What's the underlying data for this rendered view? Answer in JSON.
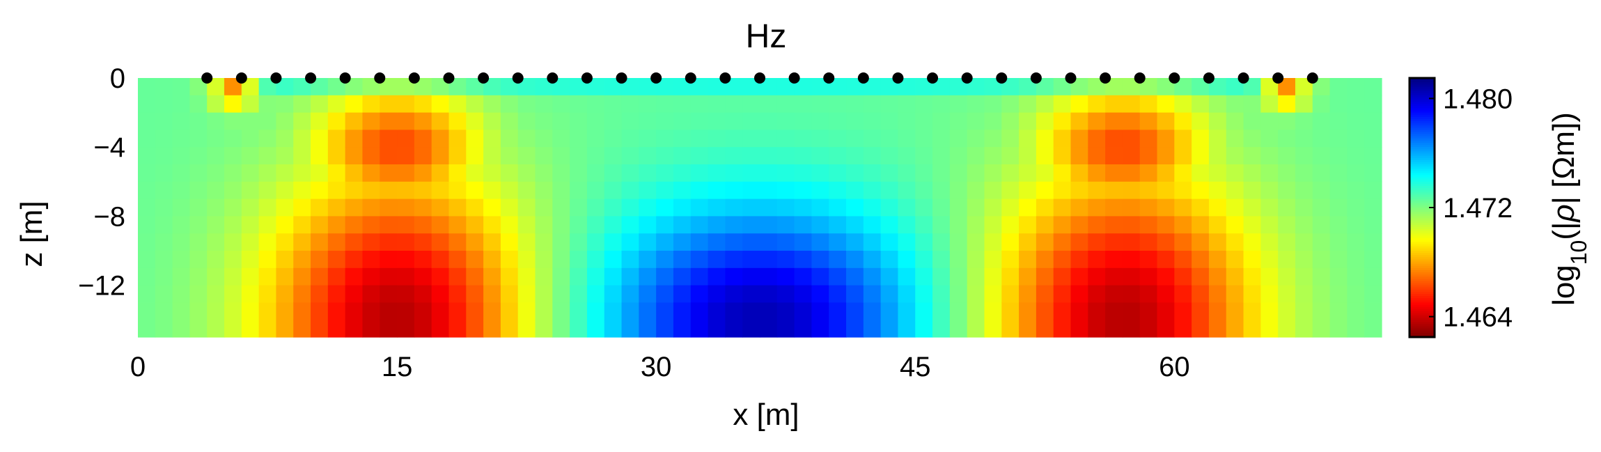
{
  "chart_data": {
    "type": "heatmap",
    "title": "Hz",
    "xlabel": "x [m]",
    "ylabel": "z [m]",
    "xlim": [
      0,
      72
    ],
    "ylim": [
      -15,
      0
    ],
    "x_ticks": [
      0,
      15,
      30,
      45,
      60
    ],
    "x_tick_labels": [
      "0",
      "15",
      "30",
      "45",
      "60"
    ],
    "y_ticks": [
      0,
      -4,
      -8,
      -12
    ],
    "y_tick_labels": [
      "0",
      "−4",
      "−8",
      "−12"
    ],
    "colorbar": {
      "label": "log10(|ρ| [Ωm])",
      "range": [
        1.4625,
        1.4815
      ],
      "ticks": [
        1.464,
        1.472,
        1.48
      ],
      "tick_labels": [
        "1.464",
        "1.472",
        "1.480"
      ],
      "colormap": "jet",
      "reversed": true
    },
    "electrodes_x": [
      4,
      6,
      8,
      10,
      12,
      14,
      16,
      18,
      20,
      22,
      24,
      26,
      28,
      30,
      32,
      34,
      36,
      38,
      40,
      42,
      44,
      46,
      48,
      50,
      52,
      54,
      56,
      58,
      60,
      62,
      64,
      66,
      68
    ],
    "electrode_color": "#000000",
    "field_features": [
      {
        "x": 15,
        "z": -12.5,
        "value": 1.4635
      },
      {
        "x": 57,
        "z": -12.5,
        "value": 1.4635
      },
      {
        "x": 36,
        "z": -14,
        "value": 1.4805
      },
      {
        "x": 5.5,
        "z": -0.5,
        "value": 1.4665
      },
      {
        "x": 66.5,
        "z": -0.5,
        "value": 1.4665
      }
    ],
    "background_value": 1.4725
  }
}
